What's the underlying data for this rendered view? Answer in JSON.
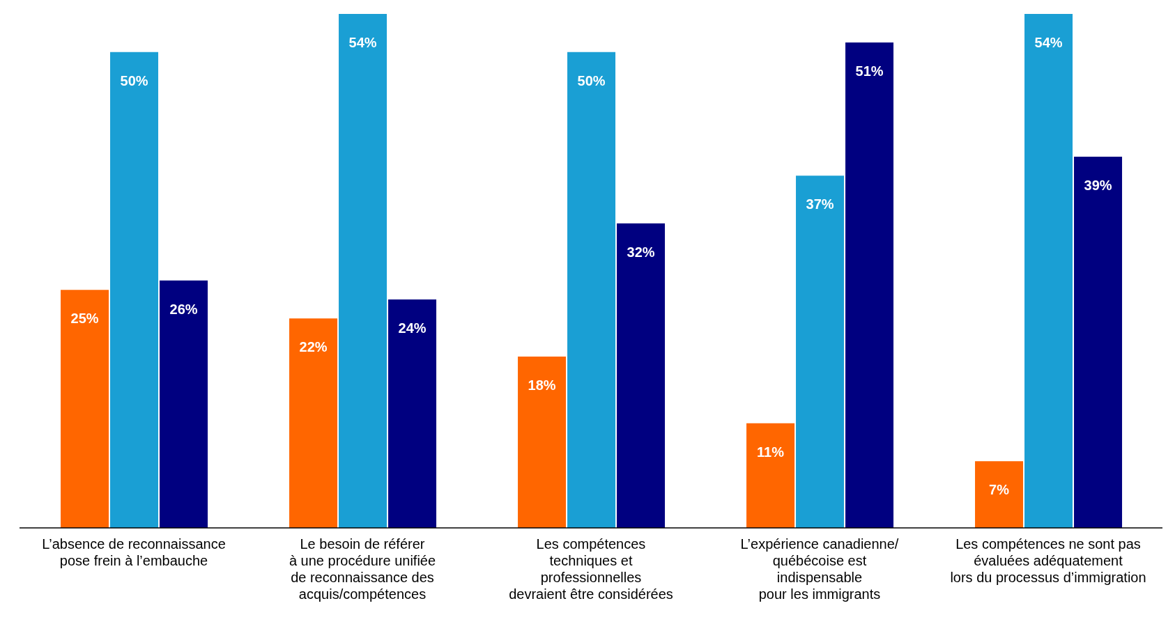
{
  "chart_data": {
    "type": "bar",
    "categories": [
      "L’absence de reconnaissance\npose frein à l’embauche",
      "Le besoin de référer\nà une procédure unifiée\nde reconnaissance des\nacquis/compétences",
      "Les compétences\ntechniques et\nprofessionnelles\ndevraient être considérées",
      "L’expérience canadienne/\nquébécoise est\nindispensable\npour les immigrants",
      "Les compétences ne sont pas\névaluées adéquatement\nlors du processus d’immigration"
    ],
    "series": [
      {
        "color": "#ff6600",
        "values": [
          25,
          22,
          18,
          11,
          7
        ],
        "value_labels": [
          "25%",
          "22%",
          "18%",
          "11%",
          "7%"
        ]
      },
      {
        "color": "#1a9fd4",
        "values": [
          50,
          54,
          50,
          37,
          54
        ],
        "value_labels": [
          "50%",
          "54%",
          "50%",
          "37%",
          "54%"
        ]
      },
      {
        "color": "#000080",
        "values": [
          26,
          24,
          32,
          51,
          39
        ],
        "value_labels": [
          "26%",
          "24%",
          "32%",
          "51%",
          "39%"
        ]
      }
    ],
    "grid": false,
    "legend": false
  }
}
